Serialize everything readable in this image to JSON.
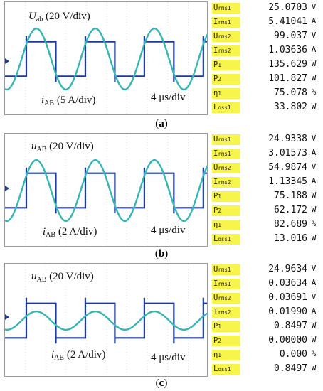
{
  "chart_data": [
    {
      "type": "line",
      "caption": "(a)",
      "annotations": {
        "voltage_sym": "U",
        "voltage_sub": "ab",
        "voltage_scale": "(20 V/div)",
        "current_sym": "i",
        "current_sub": "AB",
        "current_scale": "(5 A/div)",
        "time_scale": "4 μs/div"
      },
      "series": [
        {
          "name": "Uab",
          "waveform": "square",
          "amplitude_div": 0.85,
          "color": "#1a3a9e"
        },
        {
          "name": "iAB",
          "waveform": "sine",
          "amplitude_div": 1.5,
          "color": "#35b5b5"
        }
      ],
      "period_div": 2.9,
      "measurements": [
        {
          "label": "Urms1",
          "value": "25.0703",
          "unit": "V"
        },
        {
          "label": "Irms1",
          "value": "5.41041",
          "unit": "A"
        },
        {
          "label": "Urms2",
          "value": "99.037",
          "unit": "V"
        },
        {
          "label": "Irms2",
          "value": "1.03636",
          "unit": "A"
        },
        {
          "label": "P1",
          "value": "135.629",
          "unit": "W"
        },
        {
          "label": "P2",
          "value": "101.827",
          "unit": "W"
        },
        {
          "label": "η1",
          "value": "75.078",
          "unit": "%"
        },
        {
          "label": "Loss1",
          "value": "33.802",
          "unit": "W"
        }
      ]
    },
    {
      "type": "line",
      "caption": "(b)",
      "annotations": {
        "voltage_sym": "u",
        "voltage_sub": "AB",
        "voltage_scale": "(20 V/div)",
        "current_sym": "i",
        "current_sub": "AB",
        "current_scale": "(2 A/div)",
        "time_scale": "4 μs/div"
      },
      "series": [
        {
          "name": "uAB",
          "waveform": "square",
          "amplitude_div": 0.85,
          "color": "#1a3a9e"
        },
        {
          "name": "iAB",
          "waveform": "sine",
          "amplitude_div": 1.5,
          "color": "#35b5b5"
        }
      ],
      "period_div": 2.9,
      "measurements": [
        {
          "label": "Urms1",
          "value": "24.9338",
          "unit": "V"
        },
        {
          "label": "Irms1",
          "value": "3.01573",
          "unit": "A"
        },
        {
          "label": "Urms2",
          "value": "54.9874",
          "unit": "V"
        },
        {
          "label": "Irms2",
          "value": "1.13345",
          "unit": "A"
        },
        {
          "label": "P1",
          "value": "75.188",
          "unit": "W"
        },
        {
          "label": "P2",
          "value": "62.172",
          "unit": "W"
        },
        {
          "label": "η1",
          "value": "82.689",
          "unit": "%"
        },
        {
          "label": "Loss1",
          "value": "13.016",
          "unit": "W"
        }
      ]
    },
    {
      "type": "line",
      "caption": "(c)",
      "annotations": {
        "voltage_sym": "u",
        "voltage_sub": "AB",
        "voltage_scale": "(20 V/div)",
        "current_sym": "i",
        "current_sub": "AB",
        "current_scale": "(2 A/div)",
        "time_scale": "4 μs/div"
      },
      "series": [
        {
          "name": "uAB",
          "waveform": "square",
          "amplitude_div": 0.85,
          "color": "#1a3a9e"
        },
        {
          "name": "iAB",
          "waveform": "sine",
          "amplitude_div": 0.45,
          "color": "#35b5b5"
        }
      ],
      "period_div": 2.9,
      "measurements": [
        {
          "label": "Urms1",
          "value": "24.9634",
          "unit": "V"
        },
        {
          "label": "Irms1",
          "value": "0.03634",
          "unit": "A"
        },
        {
          "label": "Urms2",
          "value": "0.03691",
          "unit": "V"
        },
        {
          "label": "Irms2",
          "value": "0.01990",
          "unit": "A"
        },
        {
          "label": "P1",
          "value": "0.8497",
          "unit": "W"
        },
        {
          "label": "P2",
          "value": "0.00000",
          "unit": "W"
        },
        {
          "label": "η1",
          "value": "0.000",
          "unit": "%"
        },
        {
          "label": "Loss1",
          "value": "0.8497",
          "unit": "W"
        }
      ]
    }
  ]
}
